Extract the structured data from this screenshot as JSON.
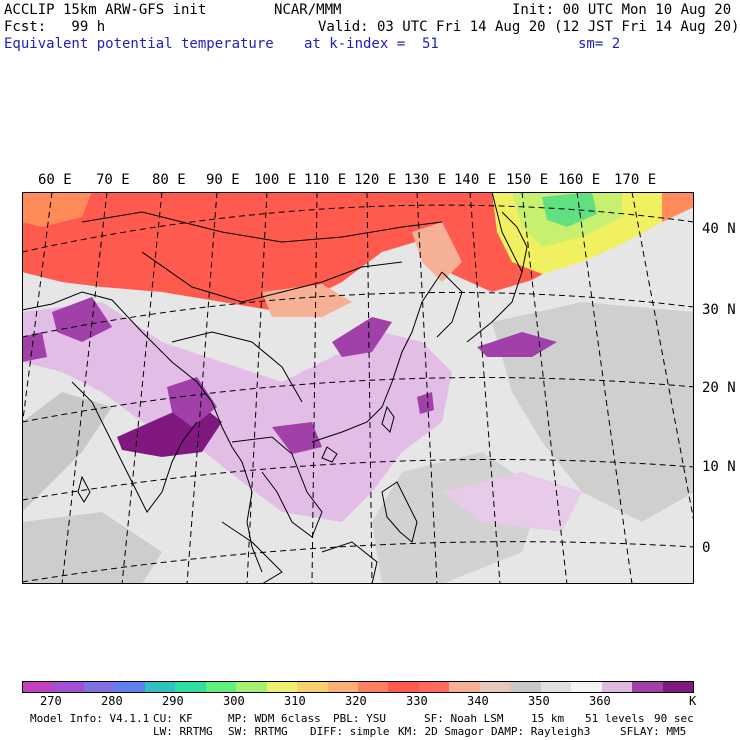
{
  "header": {
    "model_line": "ACCLIP 15km ARW-GFS init",
    "center_label": "NCAR/MMM",
    "init_line": "Init: 00 UTC Mon 10 Aug 20",
    "fcst_line": "Fcst:   99 h",
    "valid_line": "Valid: 03 UTC Fri 14 Aug 20 (12 JST Fri 14 Aug 20)",
    "field_name": "Equivalent potential temperature",
    "level_line": "at k-index =  51",
    "smooth_line": "sm= 2"
  },
  "map": {
    "longitude_labels": [
      "60 E",
      "70 E",
      "80 E",
      "90 E",
      "100 E",
      "110 E",
      "120 E",
      "130 E",
      "140 E",
      "150 E",
      "160 E",
      "170 E"
    ],
    "latitude_labels": [
      "40 N",
      "30 N",
      "20 N",
      "10 N",
      "0"
    ],
    "colors": {
      "warm_red": "#ff5a4e",
      "orange": "#ff8a5a",
      "peach": "#f6b096",
      "grey": "#c8c8c8",
      "light_grey": "#e4e4e4",
      "light_purple": "#e2bde6",
      "purple": "#a040a8",
      "dark_purple": "#801880",
      "yellow": "#f0f060",
      "lime": "#c8f070",
      "green": "#60e080"
    }
  },
  "colorbar": {
    "colors": [
      "#c040c0",
      "#a050d0",
      "#8070e0",
      "#6080f0",
      "#30c0c0",
      "#30e0a0",
      "#60f080",
      "#a8f070",
      "#f0f070",
      "#f8d070",
      "#ffb070",
      "#ff8060",
      "#ff5a4e",
      "#ff6a60",
      "#f6b096",
      "#e8c8b8",
      "#c8c8c8",
      "#e0e0e0",
      "#f4f4f4",
      "#e0b8e0",
      "#a040a8",
      "#801880"
    ],
    "tick_labels": [
      "270",
      "280",
      "290",
      "300",
      "310",
      "320",
      "330",
      "340",
      "350",
      "360"
    ],
    "unit": "K"
  },
  "footer": {
    "line1": [
      "Model Info: V4.1.1",
      "CU: KF",
      "MP: WDM 6class",
      "PBL: YSU",
      "SF: Noah LSM",
      "15 km",
      "51 levels",
      "90 sec"
    ],
    "line2": [
      "LW: RRTMG",
      "SW: RRTMG",
      "DIFF: simple",
      "KM: 2D Smagor",
      "DAMP: Rayleigh3",
      "SFLAY: MM5"
    ]
  }
}
